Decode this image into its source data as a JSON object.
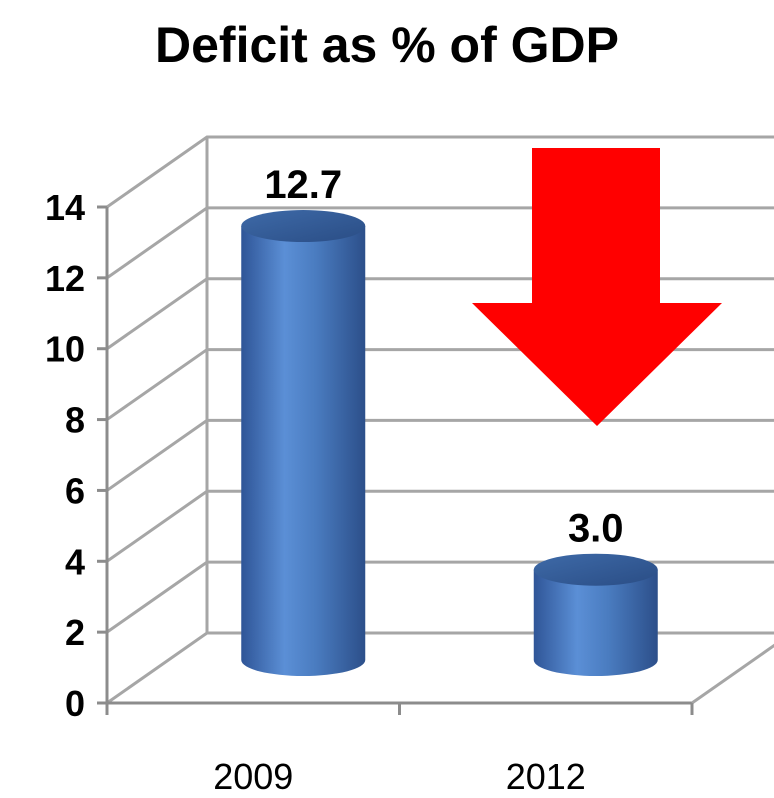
{
  "chart_data": {
    "type": "bar",
    "title": "Deficit as % of GDP",
    "xlabel": "",
    "ylabel": "",
    "categories": [
      "2009",
      "2012"
    ],
    "values": [
      12.7,
      3.0
    ],
    "data_labels": [
      "12.7",
      "3.0"
    ],
    "ylim": [
      0,
      14
    ],
    "yticks": [
      0,
      2,
      4,
      6,
      8,
      10,
      12,
      14
    ],
    "grid": true,
    "legend": "none",
    "bar_color": "#4f81bd",
    "annotation": {
      "shape": "down-arrow",
      "color": "#ff0000"
    }
  }
}
